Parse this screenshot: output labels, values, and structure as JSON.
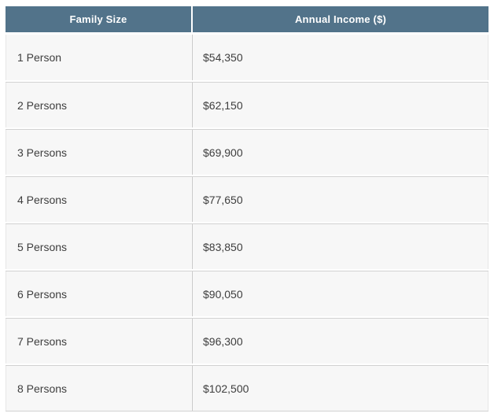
{
  "table": {
    "columns": [
      {
        "label": "Family Size"
      },
      {
        "label": "Annual Income ($)"
      }
    ],
    "rows": [
      {
        "family_size": "1 Person",
        "annual_income": "$54,350"
      },
      {
        "family_size": "2 Persons",
        "annual_income": "$62,150"
      },
      {
        "family_size": "3 Persons",
        "annual_income": "$69,900"
      },
      {
        "family_size": "4 Persons",
        "annual_income": "$77,650"
      },
      {
        "family_size": "5 Persons",
        "annual_income": "$83,850"
      },
      {
        "family_size": "6 Persons",
        "annual_income": "$90,050"
      },
      {
        "family_size": "7 Persons",
        "annual_income": "$96,300"
      },
      {
        "family_size": "8 Persons",
        "annual_income": "$102,500"
      }
    ]
  },
  "colors": {
    "header_bg": "#52738a",
    "header_text": "#ffffff",
    "row_bg": "#f7f7f7",
    "row_text": "#3e3e3e",
    "row_divider": "#d2d2d2",
    "outer_border": "#e7e7e7"
  },
  "chart_data": {
    "type": "table",
    "columns": [
      "Family Size",
      "Annual Income ($)"
    ],
    "rows": [
      [
        "1 Person",
        "$54,350"
      ],
      [
        "2 Persons",
        "$62,150"
      ],
      [
        "3 Persons",
        "$69,900"
      ],
      [
        "4 Persons",
        "$77,650"
      ],
      [
        "5 Persons",
        "$83,850"
      ],
      [
        "6 Persons",
        "$90,050"
      ],
      [
        "7 Persons",
        "$96,300"
      ],
      [
        "8 Persons",
        "$102,500"
      ]
    ],
    "income_values_numeric": [
      54350,
      62150,
      69900,
      77650,
      83850,
      90050,
      96300,
      102500
    ]
  }
}
